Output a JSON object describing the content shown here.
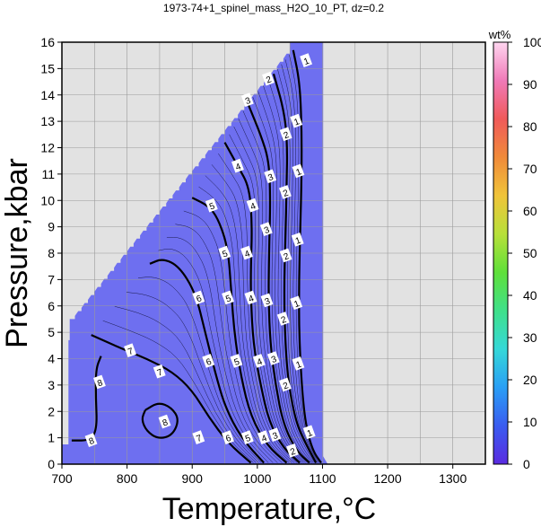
{
  "chart_data": {
    "type": "contour",
    "title": "1973-74+1_spinel_mass_H2O_10_PT, dz=0.2",
    "xlabel": "Temperature,°C",
    "ylabel": "Pressure,kbar",
    "xlim": [
      700,
      1350
    ],
    "ylim": [
      0,
      16
    ],
    "xticks": [
      "700",
      "800",
      "900",
      "1000",
      "1100",
      "1200",
      "1300"
    ],
    "yticks": [
      "0",
      "1",
      "2",
      "3",
      "4",
      "5",
      "6",
      "7",
      "8",
      "9",
      "10",
      "11",
      "12",
      "13",
      "14",
      "15",
      "16"
    ],
    "grid": true,
    "colorbar": {
      "title": "wt%",
      "range": [
        0,
        100
      ],
      "ticks": [
        "0",
        "10",
        "20",
        "30",
        "40",
        "50",
        "60",
        "70",
        "80",
        "90",
        "100"
      ],
      "colors": [
        "#5a2be0",
        "#3a5cf0",
        "#2a9ff5",
        "#35d8d8",
        "#3fe08a",
        "#5fe03a",
        "#b8e03a",
        "#f0c43a",
        "#f08a3a",
        "#f05a5a",
        "#f07ab8",
        "#ffd6f0"
      ]
    },
    "field_color": "#6e6ff0",
    "background_color": "#e2e2e2",
    "contours": [
      {
        "level": 1,
        "points": [
          [
            1055,
            15.7
          ],
          [
            1065,
            14.5
          ],
          [
            1068,
            12.8
          ],
          [
            1068,
            11
          ],
          [
            1066,
            9
          ],
          [
            1064,
            7
          ],
          [
            1064,
            5
          ],
          [
            1068,
            3
          ],
          [
            1074,
            1.5
          ],
          [
            1085,
            0.5
          ],
          [
            1098,
            0.05
          ]
        ]
      },
      {
        "level": 2,
        "points": [
          [
            1025,
            14.8
          ],
          [
            1040,
            13.5
          ],
          [
            1046,
            12.3
          ],
          [
            1045,
            10.5
          ],
          [
            1043,
            8.5
          ],
          [
            1041,
            6.5
          ],
          [
            1043,
            4.5
          ],
          [
            1048,
            3
          ],
          [
            1060,
            1.5
          ],
          [
            1078,
            0.6
          ],
          [
            1090,
            0.05
          ]
        ]
      },
      {
        "level": 3,
        "points": [
          [
            985,
            13.7
          ],
          [
            1005,
            12.5
          ],
          [
            1018,
            11.5
          ],
          [
            1020,
            10
          ],
          [
            1018,
            8
          ],
          [
            1017,
            6.3
          ],
          [
            1020,
            4.5
          ],
          [
            1028,
            3
          ],
          [
            1040,
            1.5
          ],
          [
            1060,
            0.5
          ],
          [
            1080,
            0.05
          ]
        ]
      },
      {
        "level": 4,
        "points": [
          [
            950,
            12.2
          ],
          [
            970,
            11.3
          ],
          [
            988,
            10.5
          ],
          [
            992,
            9
          ],
          [
            990,
            7.5
          ],
          [
            990,
            6.3
          ],
          [
            994,
            4.5
          ],
          [
            1005,
            3
          ],
          [
            1018,
            1.6
          ],
          [
            1040,
            0.6
          ],
          [
            1065,
            0.05
          ]
        ]
      },
      {
        "level": 5,
        "points": [
          [
            900,
            10.1
          ],
          [
            925,
            9.8
          ],
          [
            940,
            9.3
          ],
          [
            955,
            8.2
          ],
          [
            960,
            6.5
          ],
          [
            965,
            4.9
          ],
          [
            975,
            3.3
          ],
          [
            990,
            1.8
          ],
          [
            1015,
            0.7
          ],
          [
            1045,
            0.05
          ]
        ]
      },
      {
        "level": 6,
        "points": [
          [
            835,
            7.6
          ],
          [
            855,
            7.8
          ],
          [
            880,
            7.5
          ],
          [
            905,
            6.5
          ],
          [
            920,
            5
          ],
          [
            935,
            3.5
          ],
          [
            950,
            2.2
          ],
          [
            975,
            1
          ],
          [
            1010,
            0.05
          ]
        ]
      },
      {
        "level": 7,
        "points": [
          [
            745,
            4.9
          ],
          [
            790,
            4.4
          ],
          [
            830,
            4
          ],
          [
            870,
            3.5
          ],
          [
            900,
            2.8
          ],
          [
            925,
            1.8
          ],
          [
            955,
            0.8
          ],
          [
            990,
            0.05
          ]
        ]
      },
      {
        "level": 8,
        "points": [
          [
            828,
            2.05
          ],
          [
            848,
            2.35
          ],
          [
            868,
            2.15
          ],
          [
            880,
            1.7
          ],
          [
            870,
            1.1
          ],
          [
            848,
            0.95
          ],
          [
            830,
            1.25
          ],
          [
            822,
            1.7
          ],
          [
            828,
            2.05
          ]
        ]
      },
      {
        "level": 8,
        "points": [
          [
            760,
            4.1
          ],
          [
            752,
            3.6
          ],
          [
            752,
            2.5
          ],
          [
            754,
            1.4
          ],
          [
            745,
            0.9
          ],
          [
            715,
            0.9
          ]
        ]
      }
    ],
    "contour_labels": [
      {
        "t": 1075,
        "p": 15.3,
        "text": "1"
      },
      {
        "t": 1060,
        "p": 13.0,
        "text": "1"
      },
      {
        "t": 1063,
        "p": 11.1,
        "text": "1"
      },
      {
        "t": 1062,
        "p": 8.5,
        "text": "1"
      },
      {
        "t": 1060,
        "p": 6.1,
        "text": "1"
      },
      {
        "t": 1063,
        "p": 3.8,
        "text": "1"
      },
      {
        "t": 1080,
        "p": 1.2,
        "text": "1"
      },
      {
        "t": 1017,
        "p": 14.6,
        "text": "2"
      },
      {
        "t": 1044,
        "p": 12.5,
        "text": "2"
      },
      {
        "t": 1043,
        "p": 10.3,
        "text": "2"
      },
      {
        "t": 1044,
        "p": 7.9,
        "text": "2"
      },
      {
        "t": 1040,
        "p": 5.5,
        "text": "2"
      },
      {
        "t": 1043,
        "p": 3.0,
        "text": "2"
      },
      {
        "t": 1054,
        "p": 0.5,
        "text": "2"
      },
      {
        "t": 985,
        "p": 13.8,
        "text": "3"
      },
      {
        "t": 1020,
        "p": 10.9,
        "text": "3"
      },
      {
        "t": 1014,
        "p": 8.9,
        "text": "3"
      },
      {
        "t": 1015,
        "p": 6.2,
        "text": "3"
      },
      {
        "t": 1025,
        "p": 4.0,
        "text": "3"
      },
      {
        "t": 1027,
        "p": 1.1,
        "text": "3"
      },
      {
        "t": 970,
        "p": 11.3,
        "text": "4"
      },
      {
        "t": 993,
        "p": 9.8,
        "text": "4"
      },
      {
        "t": 984,
        "p": 8.0,
        "text": "4"
      },
      {
        "t": 990,
        "p": 6.3,
        "text": "4"
      },
      {
        "t": 1003,
        "p": 3.9,
        "text": "4"
      },
      {
        "t": 1010,
        "p": 1.0,
        "text": "4"
      },
      {
        "t": 930,
        "p": 9.8,
        "text": "5"
      },
      {
        "t": 950,
        "p": 8.0,
        "text": "5"
      },
      {
        "t": 955,
        "p": 6.3,
        "text": "5"
      },
      {
        "t": 968,
        "p": 3.9,
        "text": "5"
      },
      {
        "t": 985,
        "p": 1.0,
        "text": "5"
      },
      {
        "t": 910,
        "p": 6.3,
        "text": "6"
      },
      {
        "t": 925,
        "p": 3.9,
        "text": "6"
      },
      {
        "t": 955,
        "p": 1.0,
        "text": "6"
      },
      {
        "t": 805,
        "p": 4.3,
        "text": "7"
      },
      {
        "t": 850,
        "p": 3.5,
        "text": "7"
      },
      {
        "t": 910,
        "p": 1.0,
        "text": "7"
      },
      {
        "t": 858,
        "p": 1.6,
        "text": "8"
      },
      {
        "t": 758,
        "p": 3.1,
        "text": "8"
      },
      {
        "t": 745,
        "p": 0.9,
        "text": "8"
      }
    ]
  }
}
